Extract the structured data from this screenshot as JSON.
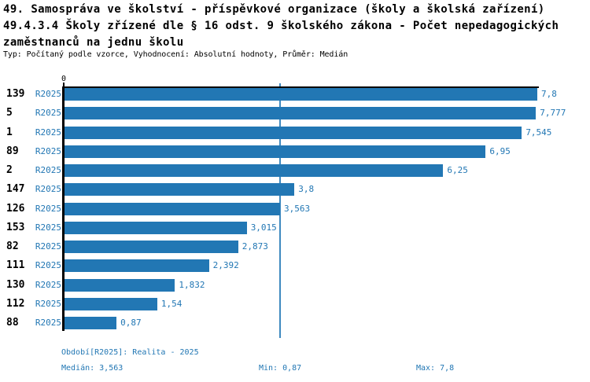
{
  "title_lines": [
    "49. Samospráva ve školství - příspěvkové organizace (školy a školská zařízení)",
    "49.4.3.4 Školy zřízené dle § 16 odst. 9 školského zákona - Počet nepedagogických",
    "zaměstnanců na jednu školu"
  ],
  "subtitle": "Typ: Počítaný podle vzorce, Vyhodnocení: Absolutní hodnoty, Průměr: Medián",
  "chart_data": {
    "type": "bar",
    "orientation": "horizontal",
    "title": "49.4.3.4 Školy zřízené dle § 16 odst. 9 školského zákona - Počet nepedagogických zaměstnanců na jednu školu",
    "x_axis": {
      "zero_label": "0",
      "min": 0,
      "max": 7.8
    },
    "median_value": 3.563,
    "series_name": "R2025",
    "rows": [
      {
        "id": "139",
        "series": "R2025",
        "value": 7.8,
        "value_label": "7,8"
      },
      {
        "id": "5",
        "series": "R2025",
        "value": 7.777,
        "value_label": "7,777"
      },
      {
        "id": "1",
        "series": "R2025",
        "value": 7.545,
        "value_label": "7,545"
      },
      {
        "id": "89",
        "series": "R2025",
        "value": 6.95,
        "value_label": "6,95"
      },
      {
        "id": "2",
        "series": "R2025",
        "value": 6.25,
        "value_label": "6,25"
      },
      {
        "id": "147",
        "series": "R2025",
        "value": 3.8,
        "value_label": "3,8"
      },
      {
        "id": "126",
        "series": "R2025",
        "value": 3.563,
        "value_label": "3,563"
      },
      {
        "id": "153",
        "series": "R2025",
        "value": 3.015,
        "value_label": "3,015"
      },
      {
        "id": "82",
        "series": "R2025",
        "value": 2.873,
        "value_label": "2,873"
      },
      {
        "id": "111",
        "series": "R2025",
        "value": 2.392,
        "value_label": "2,392"
      },
      {
        "id": "130",
        "series": "R2025",
        "value": 1.832,
        "value_label": "1,832"
      },
      {
        "id": "112",
        "series": "R2025",
        "value": 1.54,
        "value_label": "1,54"
      },
      {
        "id": "88",
        "series": "R2025",
        "value": 0.87,
        "value_label": "0,87"
      }
    ]
  },
  "footer": {
    "period_label": "Období[R2025]: Realita - 2025",
    "median_label": "Medián: 3,563",
    "min_label": "Min: 0,87",
    "max_label": "Max: 7,8"
  },
  "colors": {
    "bar": "#2277b4",
    "median_line": "#3f8ac0",
    "text_blue": "#2277b4",
    "title_text": "#000000"
  }
}
